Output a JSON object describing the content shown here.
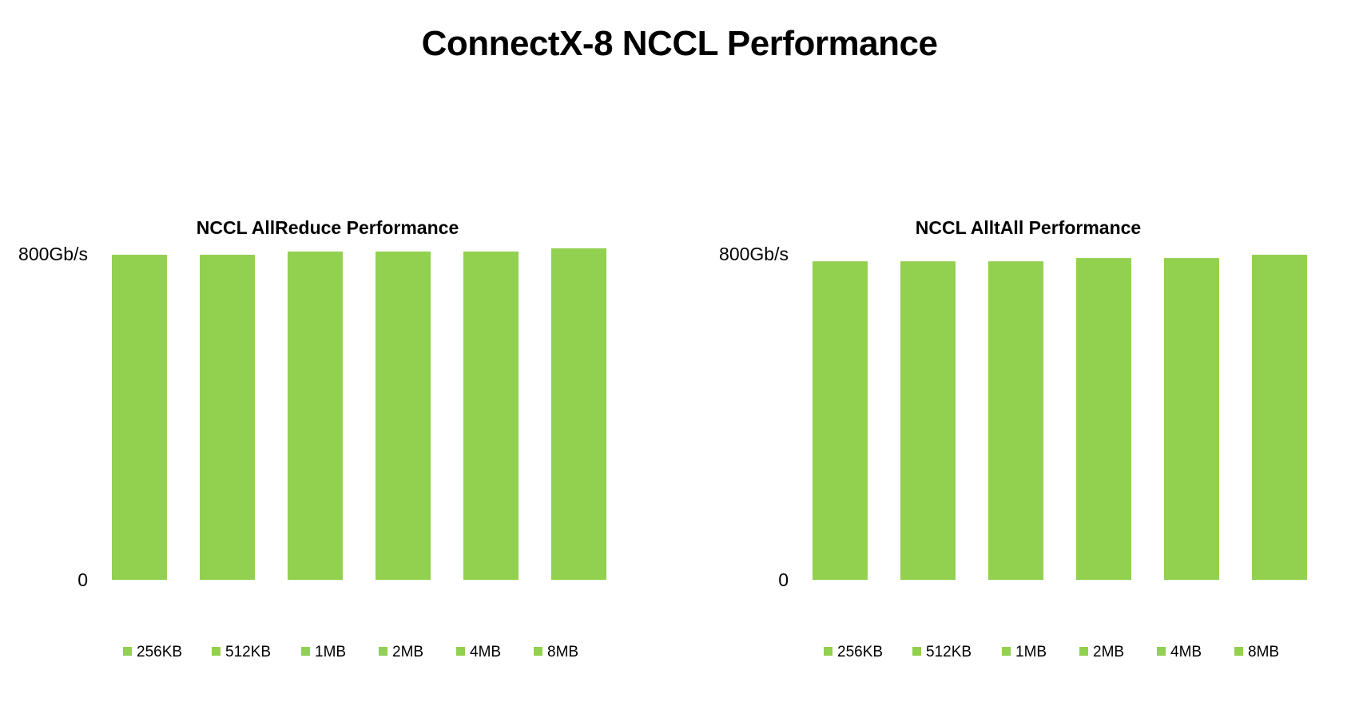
{
  "title": "ConnectX-8 NCCL Performance",
  "colors": {
    "bar": "#92d050"
  },
  "chart_data": [
    {
      "type": "bar",
      "title": "NCCL AllReduce Performance",
      "categories": [
        "256KB",
        "512KB",
        "1MB",
        "2MB",
        "4MB",
        "8MB"
      ],
      "values": [
        798,
        798,
        806,
        806,
        806,
        814
      ],
      "ylim": [
        0,
        830
      ],
      "yticks": [
        {
          "value": 0,
          "label": "0"
        },
        {
          "value": 800,
          "label": "800Gb/s"
        }
      ],
      "legend_position": "bottom",
      "grid": false
    },
    {
      "type": "bar",
      "title": "NCCL AlltAll Performance",
      "categories": [
        "256KB",
        "512KB",
        "1MB",
        "2MB",
        "4MB",
        "8MB"
      ],
      "values": [
        782,
        782,
        782,
        790,
        790,
        798
      ],
      "ylim": [
        0,
        830
      ],
      "yticks": [
        {
          "value": 0,
          "label": "0"
        },
        {
          "value": 800,
          "label": "800Gb/s"
        }
      ],
      "legend_position": "bottom",
      "grid": false
    }
  ]
}
